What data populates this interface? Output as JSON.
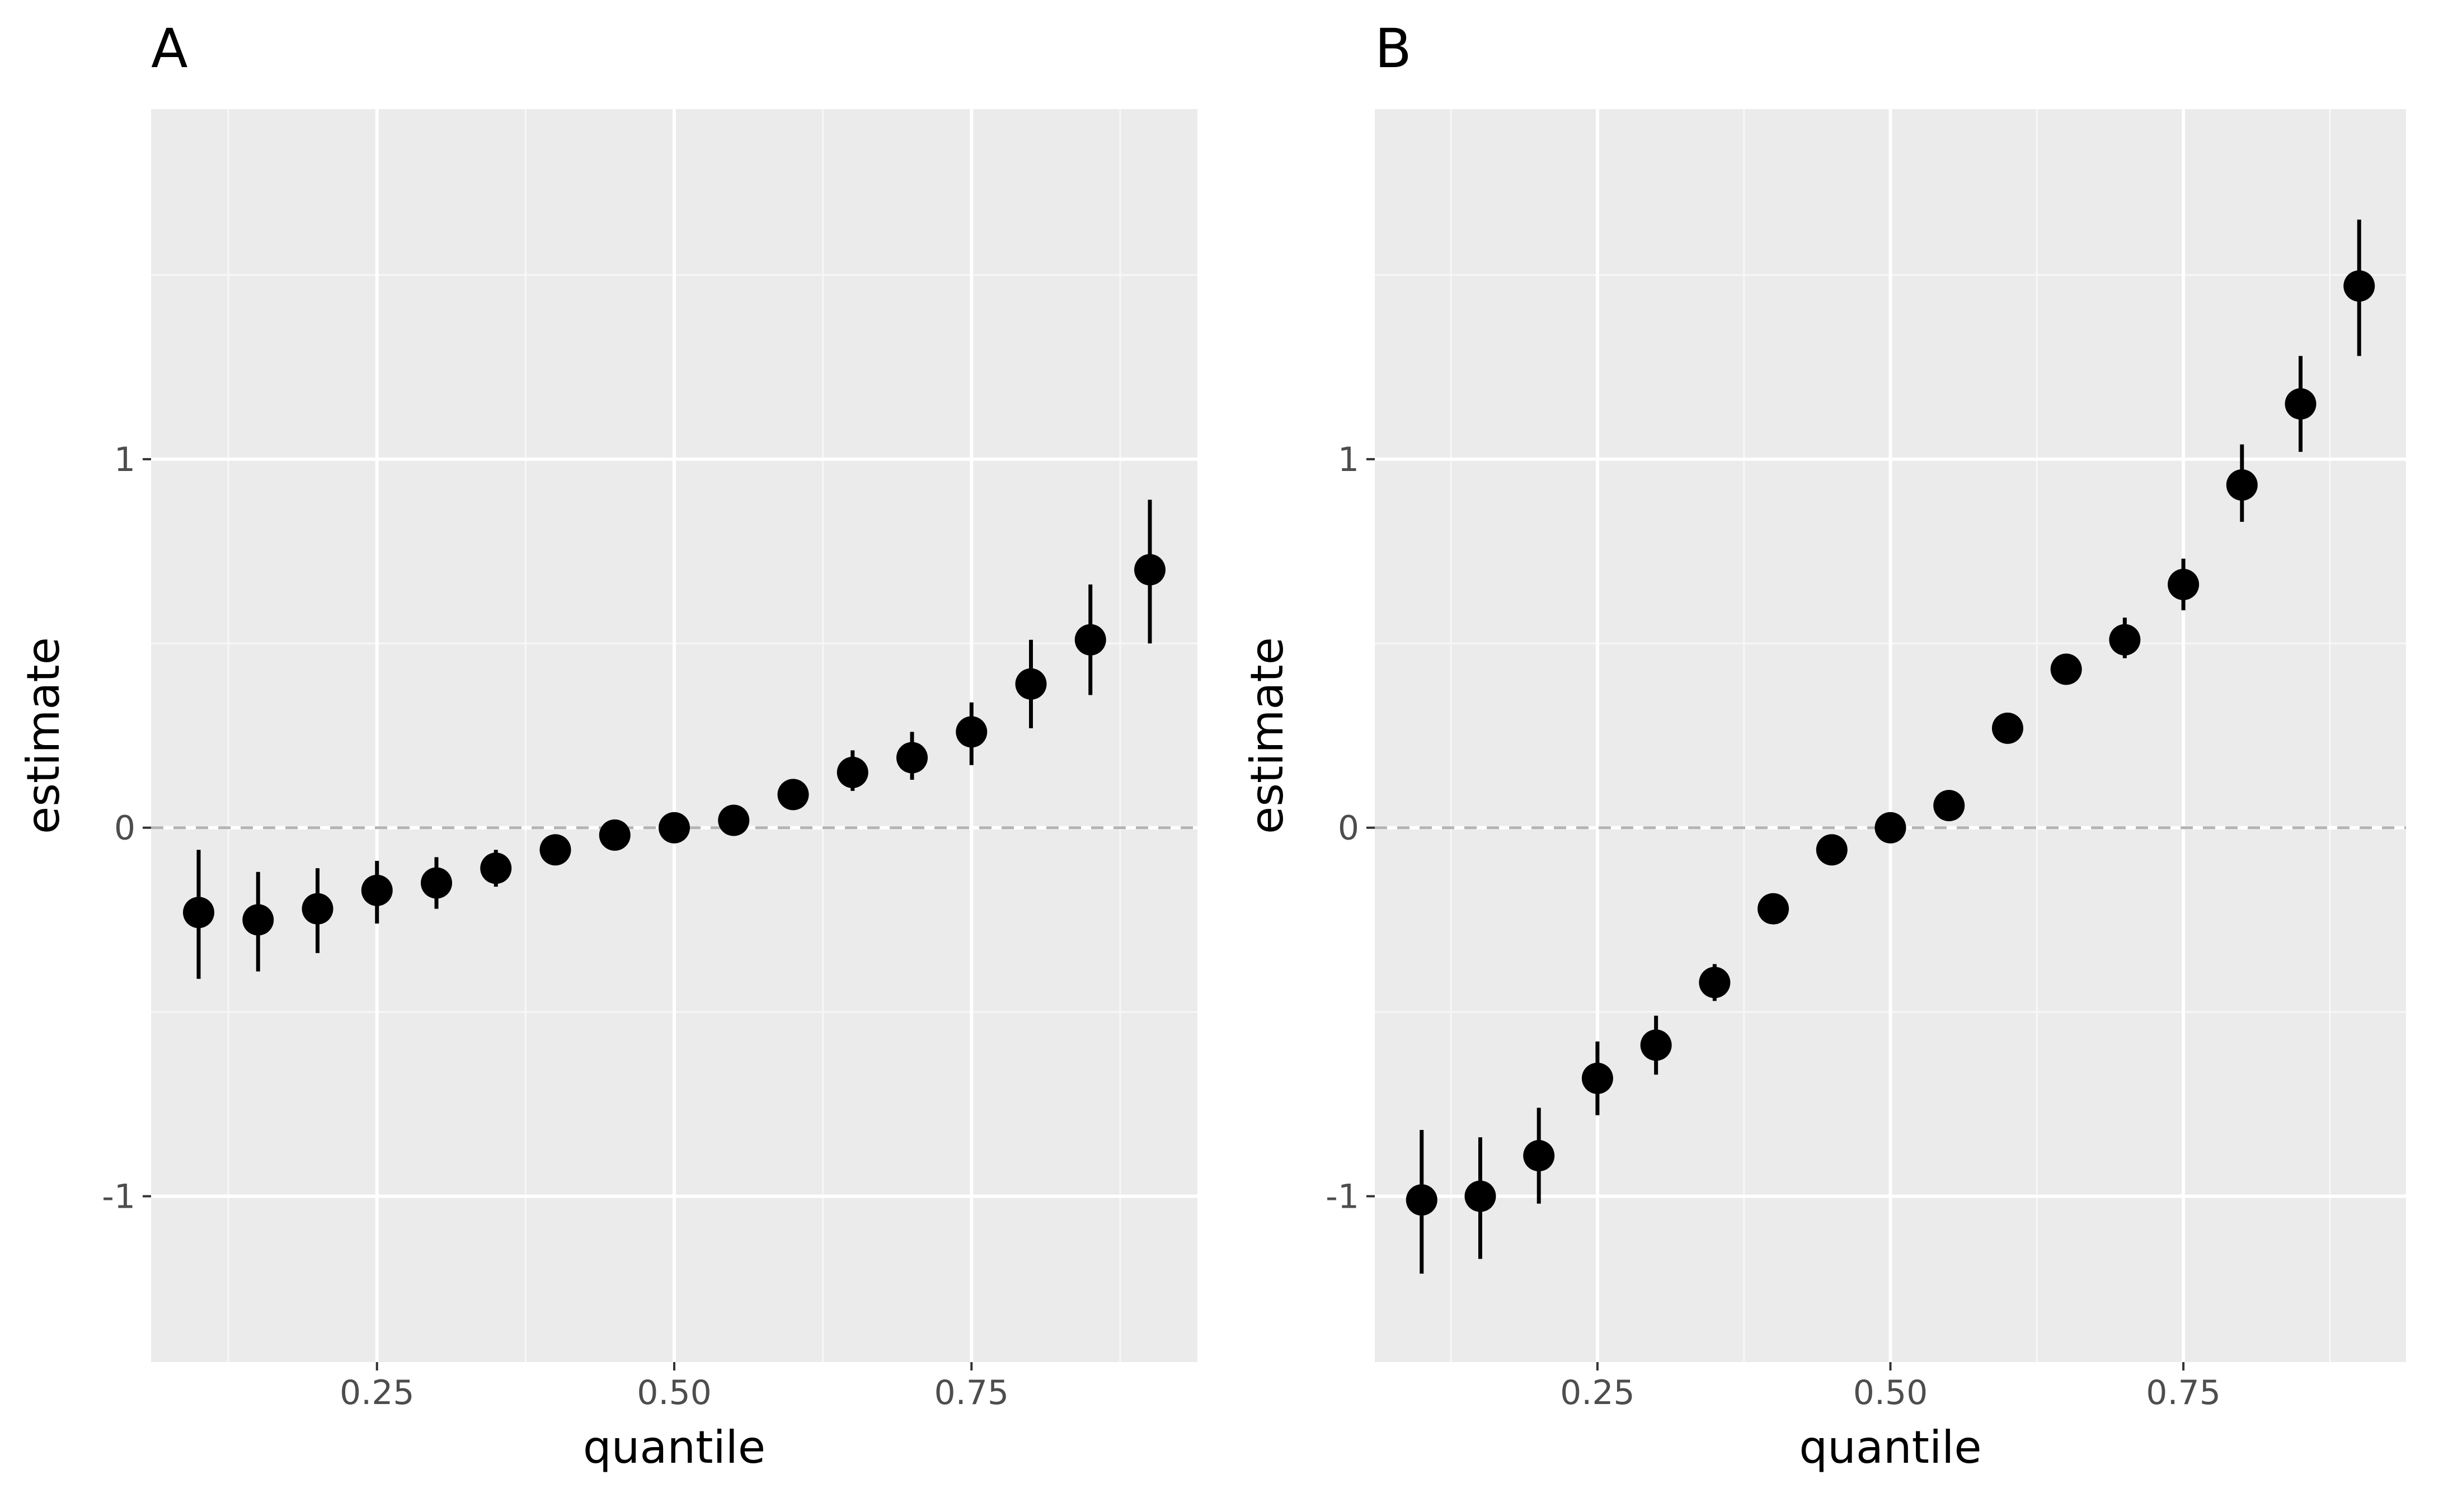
{
  "chart_data": [
    {
      "type": "scatter",
      "panel_label": "A",
      "xlabel": "quantile",
      "ylabel": "estimate",
      "x_ticks": [
        0.25,
        0.5,
        0.75
      ],
      "x_tick_labels": [
        "0.25",
        "0.50",
        "0.75"
      ],
      "y_ticks": [
        -1,
        0,
        1
      ],
      "y_tick_labels": [
        "-1",
        "0",
        "1"
      ],
      "xlim": [
        0.06,
        0.94
      ],
      "ylim": [
        -1.45,
        1.95
      ],
      "grid": true,
      "reference_line_y": 0,
      "points": [
        {
          "x": 0.1,
          "y": -0.23,
          "lo": -0.41,
          "hi": -0.06
        },
        {
          "x": 0.15,
          "y": -0.25,
          "lo": -0.39,
          "hi": -0.12
        },
        {
          "x": 0.2,
          "y": -0.22,
          "lo": -0.34,
          "hi": -0.11
        },
        {
          "x": 0.25,
          "y": -0.17,
          "lo": -0.26,
          "hi": -0.09
        },
        {
          "x": 0.3,
          "y": -0.15,
          "lo": -0.22,
          "hi": -0.08
        },
        {
          "x": 0.35,
          "y": -0.11,
          "lo": -0.16,
          "hi": -0.06
        },
        {
          "x": 0.4,
          "y": -0.06,
          "lo": -0.08,
          "hi": -0.04
        },
        {
          "x": 0.45,
          "y": -0.02,
          "lo": -0.03,
          "hi": -0.01
        },
        {
          "x": 0.5,
          "y": 0.0,
          "lo": 0.0,
          "hi": 0.0
        },
        {
          "x": 0.55,
          "y": 0.02,
          "lo": 0.01,
          "hi": 0.03
        },
        {
          "x": 0.6,
          "y": 0.09,
          "lo": 0.07,
          "hi": 0.12
        },
        {
          "x": 0.65,
          "y": 0.15,
          "lo": 0.1,
          "hi": 0.21
        },
        {
          "x": 0.7,
          "y": 0.19,
          "lo": 0.13,
          "hi": 0.26
        },
        {
          "x": 0.75,
          "y": 0.26,
          "lo": 0.17,
          "hi": 0.34
        },
        {
          "x": 0.8,
          "y": 0.39,
          "lo": 0.27,
          "hi": 0.51
        },
        {
          "x": 0.85,
          "y": 0.51,
          "lo": 0.36,
          "hi": 0.66
        },
        {
          "x": 0.9,
          "y": 0.7,
          "lo": 0.5,
          "hi": 0.89
        }
      ]
    },
    {
      "type": "scatter",
      "panel_label": "B",
      "xlabel": "quantile",
      "ylabel": "estimate",
      "x_ticks": [
        0.25,
        0.5,
        0.75
      ],
      "x_tick_labels": [
        "0.25",
        "0.50",
        "0.75"
      ],
      "y_ticks": [
        -1,
        0,
        1
      ],
      "y_tick_labels": [
        "-1",
        "0",
        "1"
      ],
      "xlim": [
        0.06,
        0.94
      ],
      "ylim": [
        -1.45,
        1.95
      ],
      "grid": true,
      "reference_line_y": 0,
      "points": [
        {
          "x": 0.1,
          "y": -1.01,
          "lo": -1.21,
          "hi": -0.82
        },
        {
          "x": 0.15,
          "y": -1.0,
          "lo": -1.17,
          "hi": -0.84
        },
        {
          "x": 0.2,
          "y": -0.89,
          "lo": -1.02,
          "hi": -0.76
        },
        {
          "x": 0.25,
          "y": -0.68,
          "lo": -0.78,
          "hi": -0.58
        },
        {
          "x": 0.3,
          "y": -0.59,
          "lo": -0.67,
          "hi": -0.51
        },
        {
          "x": 0.35,
          "y": -0.42,
          "lo": -0.47,
          "hi": -0.37
        },
        {
          "x": 0.4,
          "y": -0.22,
          "lo": -0.24,
          "hi": -0.2
        },
        {
          "x": 0.45,
          "y": -0.06,
          "lo": -0.07,
          "hi": -0.05
        },
        {
          "x": 0.5,
          "y": 0.0,
          "lo": 0.0,
          "hi": 0.0
        },
        {
          "x": 0.55,
          "y": 0.06,
          "lo": 0.05,
          "hi": 0.07
        },
        {
          "x": 0.6,
          "y": 0.27,
          "lo": 0.25,
          "hi": 0.29
        },
        {
          "x": 0.65,
          "y": 0.43,
          "lo": 0.4,
          "hi": 0.46
        },
        {
          "x": 0.7,
          "y": 0.51,
          "lo": 0.46,
          "hi": 0.57
        },
        {
          "x": 0.75,
          "y": 0.66,
          "lo": 0.59,
          "hi": 0.73
        },
        {
          "x": 0.8,
          "y": 0.93,
          "lo": 0.83,
          "hi": 1.04
        },
        {
          "x": 0.85,
          "y": 1.15,
          "lo": 1.02,
          "hi": 1.28
        },
        {
          "x": 0.9,
          "y": 1.47,
          "lo": 1.28,
          "hi": 1.65
        }
      ]
    }
  ],
  "colors": {
    "panel_background": "#ebebeb",
    "grid_major": "#ffffff",
    "grid_minor": "#f7f7f7",
    "reference_line": "#b3b3b3",
    "points": "#000000",
    "tick_text": "#4d4d4d",
    "axis_title": "#000000"
  }
}
